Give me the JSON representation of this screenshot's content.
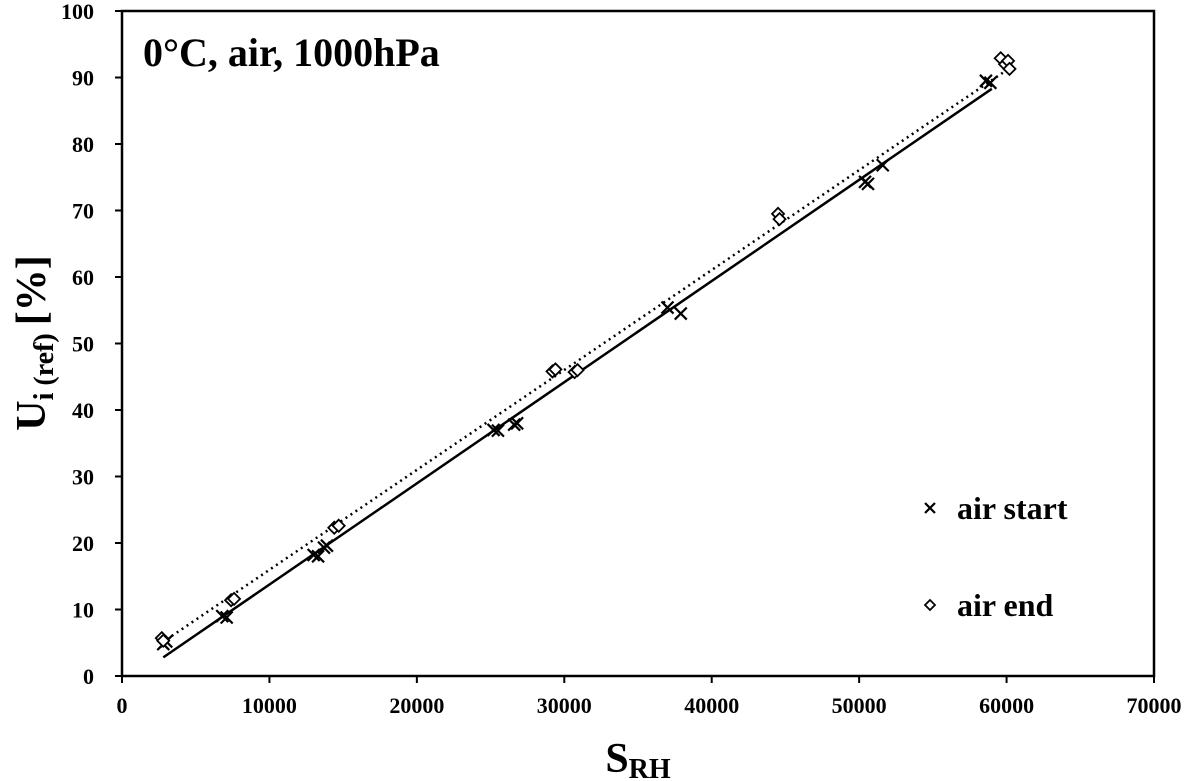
{
  "chart_data": {
    "type": "scatter",
    "title": "0°C, air, 1000hPa",
    "xlabel": {
      "main": "S",
      "sub": "RH"
    },
    "ylabel": {
      "main": "U",
      "sub": "i (ref)",
      "suffix": "[%]"
    },
    "xlim": [
      0,
      70000
    ],
    "ylim": [
      0,
      100
    ],
    "xticks": [
      0,
      10000,
      20000,
      30000,
      40000,
      50000,
      60000,
      70000
    ],
    "yticks": [
      0,
      10,
      20,
      30,
      40,
      50,
      60,
      70,
      80,
      90,
      100
    ],
    "grid": false,
    "legend_position": "bottom-right",
    "series": [
      {
        "name": "air start",
        "marker": "x",
        "color": "#000000",
        "points": [
          [
            2800,
            4.8
          ],
          [
            3000,
            5.2
          ],
          [
            6800,
            9.0
          ],
          [
            7100,
            8.8
          ],
          [
            13000,
            18.2
          ],
          [
            13300,
            18.0
          ],
          [
            13700,
            19.3
          ],
          [
            13900,
            19.6
          ],
          [
            25200,
            37.0
          ],
          [
            25500,
            36.9
          ],
          [
            26600,
            37.8
          ],
          [
            26800,
            38.0
          ],
          [
            37000,
            55.4
          ],
          [
            37900,
            54.5
          ],
          [
            50400,
            74.3
          ],
          [
            50600,
            74.0
          ],
          [
            51600,
            76.8
          ],
          [
            58600,
            89.5
          ],
          [
            58900,
            89.2
          ]
        ],
        "fit": {
          "style": "solid",
          "x": [
            2800,
            59000
          ],
          "y": [
            2.8,
            88.3
          ]
        }
      },
      {
        "name": "air end",
        "marker": "diamond",
        "color": "#000000",
        "points": [
          [
            2700,
            5.7
          ],
          [
            2800,
            5.3
          ],
          [
            7400,
            11.4
          ],
          [
            7600,
            11.6
          ],
          [
            14400,
            22.3
          ],
          [
            14700,
            22.6
          ],
          [
            29200,
            45.8
          ],
          [
            29400,
            46.1
          ],
          [
            30700,
            45.7
          ],
          [
            30900,
            46.0
          ],
          [
            44500,
            69.5
          ],
          [
            44600,
            68.7
          ],
          [
            59600,
            92.9
          ],
          [
            59900,
            92.0
          ],
          [
            60100,
            92.5
          ],
          [
            60200,
            91.3
          ]
        ],
        "fit": {
          "style": "dotted",
          "x": [
            2700,
            60200
          ],
          "y": [
            5.0,
            91.4
          ]
        }
      }
    ]
  }
}
